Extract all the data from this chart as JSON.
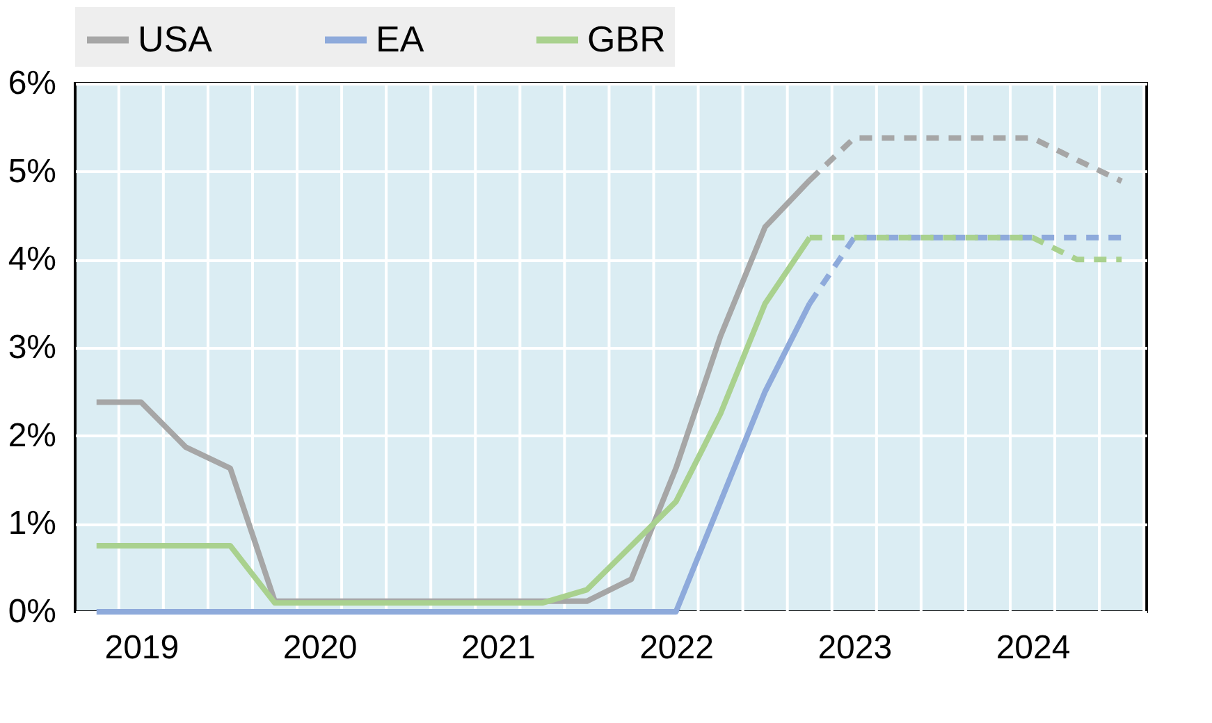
{
  "chart_data": {
    "type": "line",
    "x": [
      2018.75,
      2019.0,
      2019.25,
      2019.5,
      2019.75,
      2020.0,
      2020.25,
      2020.5,
      2020.75,
      2021.0,
      2021.25,
      2021.5,
      2021.75,
      2022.0,
      2022.25,
      2022.5,
      2022.75,
      2023.0,
      2023.25,
      2023.5,
      2023.75,
      2024.0,
      2024.25,
      2024.5
    ],
    "series": [
      {
        "name": "USA",
        "color": "#a6a6a6",
        "line_style": "solid",
        "values": [
          2.38,
          2.38,
          1.87,
          1.63,
          0.12,
          0.12,
          0.12,
          0.12,
          0.12,
          0.12,
          0.12,
          0.12,
          0.37,
          1.63,
          3.13,
          4.37,
          4.9,
          null,
          null,
          null,
          null,
          null,
          null,
          null
        ]
      },
      {
        "color": "#a6a6a6",
        "line_style": "dashed",
        "values": [
          null,
          null,
          null,
          null,
          null,
          null,
          null,
          null,
          null,
          null,
          null,
          null,
          null,
          null,
          null,
          null,
          4.9,
          5.38,
          5.38,
          5.38,
          5.38,
          5.38,
          5.13,
          4.89
        ]
      },
      {
        "name": "EA",
        "color": "#8eaadb",
        "line_style": "solid",
        "values": [
          0,
          0,
          0,
          0,
          0,
          0,
          0,
          0,
          0,
          0,
          0,
          0,
          0,
          0,
          1.25,
          2.5,
          3.5,
          null,
          null,
          null,
          null,
          null,
          null,
          null
        ]
      },
      {
        "color": "#8eaadb",
        "line_style": "dashed",
        "values": [
          null,
          null,
          null,
          null,
          null,
          null,
          null,
          null,
          null,
          null,
          null,
          null,
          null,
          null,
          null,
          null,
          3.5,
          4.25,
          4.25,
          4.25,
          4.25,
          4.25,
          4.25,
          4.25
        ]
      },
      {
        "name": "GBR",
        "color": "#a9d18e",
        "line_style": "solid",
        "values": [
          0.75,
          0.75,
          0.75,
          0.75,
          0.1,
          0.1,
          0.1,
          0.1,
          0.1,
          0.1,
          0.1,
          0.25,
          0.75,
          1.25,
          2.25,
          3.5,
          4.25,
          null,
          null,
          null,
          null,
          null,
          null,
          null
        ]
      },
      {
        "color": "#a9d18e",
        "line_style": "dashed",
        "values": [
          null,
          null,
          null,
          null,
          null,
          null,
          null,
          null,
          null,
          null,
          null,
          null,
          null,
          null,
          null,
          null,
          4.25,
          4.25,
          4.25,
          4.25,
          4.25,
          4.25,
          4.0,
          4.0
        ]
      }
    ],
    "xlim": [
      2018.63,
      2024.64
    ],
    "xticks": [
      2019,
      2020,
      2021,
      2022,
      2023,
      2024,
      {
        "value": 2018.875,
        "label": null
      },
      {
        "value": 2019.125,
        "label": null
      },
      {
        "value": 2019.375,
        "label": null
      },
      {
        "value": 2019.625,
        "label": null
      },
      {
        "value": 2019.875,
        "label": null
      },
      {
        "value": 2020.125,
        "label": null
      },
      {
        "value": 2020.375,
        "label": null
      },
      {
        "value": 2020.625,
        "label": null
      },
      {
        "value": 2020.875,
        "label": null
      },
      {
        "value": 2021.125,
        "label": null
      },
      {
        "value": 2021.375,
        "label": null
      },
      {
        "value": 2021.625,
        "label": null
      },
      {
        "value": 2021.875,
        "label": null
      },
      {
        "value": 2022.125,
        "label": null
      },
      {
        "value": 2022.375,
        "label": null
      },
      {
        "value": 2022.625,
        "label": null
      },
      {
        "value": 2022.875,
        "label": null
      },
      {
        "value": 2023.125,
        "label": null
      },
      {
        "value": 2023.375,
        "label": null
      },
      {
        "value": 2023.625,
        "label": null
      },
      {
        "value": 2023.875,
        "label": null
      },
      {
        "value": 2024.125,
        "label": null
      },
      {
        "value": 2024.375,
        "label": null
      },
      {
        "value": 2024.625,
        "label": null
      }
    ],
    "ylim": [
      0,
      6
    ],
    "yticks": [
      {
        "value": 0,
        "label": "0%"
      },
      {
        "value": 1,
        "label": "1%"
      },
      {
        "value": 2,
        "label": "2%"
      },
      {
        "value": 3,
        "label": "3%"
      },
      {
        "value": 4,
        "label": "4%"
      },
      {
        "value": 5,
        "label": "5%"
      },
      {
        "value": 6,
        "label": "6%"
      }
    ],
    "grid": true,
    "legend": "top",
    "marker": "none"
  }
}
